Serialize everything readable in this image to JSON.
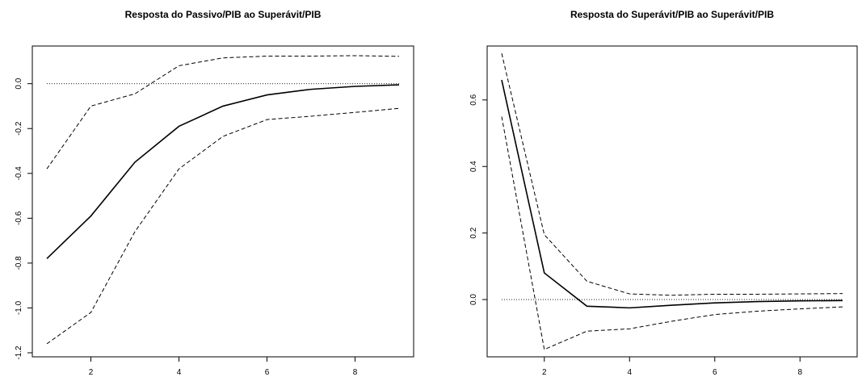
{
  "chart_data": [
    {
      "type": "line",
      "title": "Resposta do Passivo/PIB ao Superávit/PIB",
      "xlabel": "",
      "ylabel": "",
      "xlim": [
        1,
        9
      ],
      "ylim": [
        -1.2,
        0.15
      ],
      "x_ticks": [
        2,
        4,
        6,
        8
      ],
      "y_ticks": [
        0.0,
        -0.2,
        -0.4,
        -0.6,
        -0.8,
        -1.0,
        -1.2
      ],
      "y_tick_labels": [
        "0.0",
        "-0.2",
        "-0.4",
        "-0.6",
        "-0.8",
        "-1.0",
        "-1.2"
      ],
      "x_tick_labels": [
        "2",
        "4",
        "6",
        "8"
      ],
      "grid": false,
      "reference_line": 0,
      "x": [
        1,
        2,
        3,
        4,
        5,
        6,
        7,
        8,
        9
      ],
      "series": [
        {
          "style": "solid",
          "values": [
            -0.78,
            -0.59,
            -0.35,
            -0.19,
            -0.1,
            -0.05,
            -0.025,
            -0.012,
            -0.005
          ]
        },
        {
          "style": "dashed",
          "values": [
            -0.38,
            -0.1,
            -0.045,
            0.08,
            0.115,
            0.123,
            0.123,
            0.125,
            0.122
          ]
        },
        {
          "style": "dashed",
          "values": [
            -1.16,
            -1.02,
            -0.66,
            -0.38,
            -0.235,
            -0.16,
            -0.145,
            -0.128,
            -0.11
          ]
        }
      ]
    },
    {
      "type": "line",
      "title": "Resposta do Superávit/PIB ao Superávit/PIB",
      "xlabel": "",
      "ylabel": "",
      "xlim": [
        1,
        9
      ],
      "ylim": [
        -0.16,
        0.75
      ],
      "x_ticks": [
        2,
        4,
        6,
        8
      ],
      "y_ticks": [
        0.0,
        0.2,
        0.4,
        0.6
      ],
      "y_tick_labels": [
        "0.0",
        "0.2",
        "0.4",
        "0.6"
      ],
      "x_tick_labels": [
        "2",
        "4",
        "6",
        "8"
      ],
      "grid": false,
      "reference_line": 0,
      "x": [
        1,
        2,
        3,
        4,
        5,
        6,
        7,
        8,
        9
      ],
      "series": [
        {
          "style": "solid",
          "values": [
            0.66,
            0.08,
            -0.02,
            -0.025,
            -0.017,
            -0.01,
            -0.006,
            -0.004,
            -0.003
          ]
        },
        {
          "style": "dashed",
          "values": [
            0.74,
            0.195,
            0.055,
            0.017,
            0.013,
            0.016,
            0.016,
            0.017,
            0.018
          ]
        },
        {
          "style": "dashed",
          "values": [
            0.55,
            -0.15,
            -0.095,
            -0.088,
            -0.065,
            -0.045,
            -0.035,
            -0.028,
            -0.022
          ]
        }
      ]
    }
  ]
}
